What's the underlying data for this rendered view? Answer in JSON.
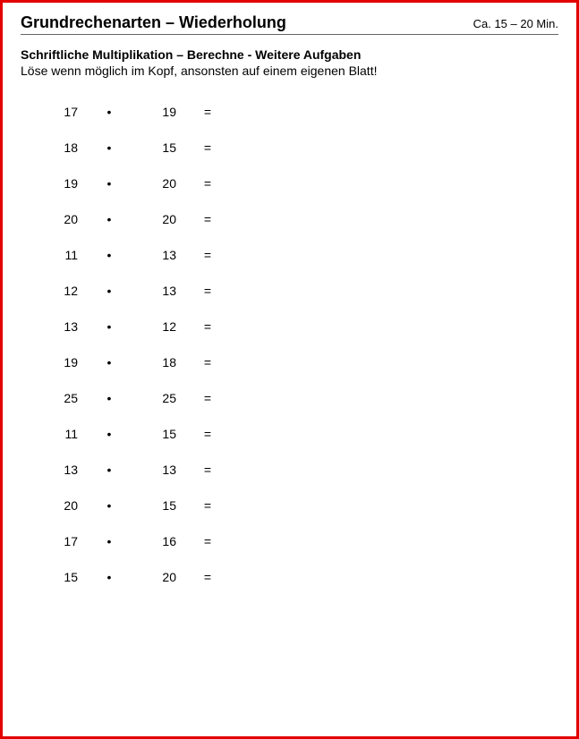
{
  "header": {
    "title": "Grundrechenarten – Wiederholung",
    "duration": "Ca. 15 – 20 Min."
  },
  "section": {
    "subtitle": "Schriftliche Multiplikation – Berechne - Weitere Aufgaben",
    "instruction": "Löse wenn möglich im Kopf, ansonsten auf einem eigenen Blatt!"
  },
  "symbols": {
    "operator": "•",
    "equals": "="
  },
  "problems": [
    {
      "a": "17",
      "b": "19"
    },
    {
      "a": "18",
      "b": "15"
    },
    {
      "a": "19",
      "b": "20"
    },
    {
      "a": "20",
      "b": "20"
    },
    {
      "a": "11",
      "b": "13"
    },
    {
      "a": "12",
      "b": "13"
    },
    {
      "a": "13",
      "b": "12"
    },
    {
      "a": "19",
      "b": "18"
    },
    {
      "a": "25",
      "b": "25"
    },
    {
      "a": "11",
      "b": "15"
    },
    {
      "a": "13",
      "b": "13"
    },
    {
      "a": "20",
      "b": "15"
    },
    {
      "a": "17",
      "b": "16"
    },
    {
      "a": "15",
      "b": "20"
    }
  ],
  "style": {
    "border_color": "#e20000",
    "background_color": "#ffffff",
    "text_color": "#000000",
    "title_fontsize": 18,
    "body_fontsize": 14
  }
}
